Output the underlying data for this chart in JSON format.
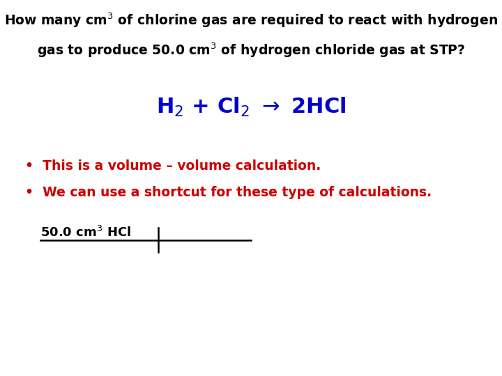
{
  "background_color": "#ffffff",
  "title_color": "#000000",
  "title_fontsize": 13.5,
  "equation_color": "#0000cc",
  "equation_fontsize": 22,
  "bullet1": "This is a volume – volume calculation.",
  "bullet2": "We can use a shortcut for these type of calculations.",
  "bullet_color": "#cc0000",
  "bullet_fontsize": 13.5,
  "label_fontsize": 13,
  "label_color": "#000000"
}
